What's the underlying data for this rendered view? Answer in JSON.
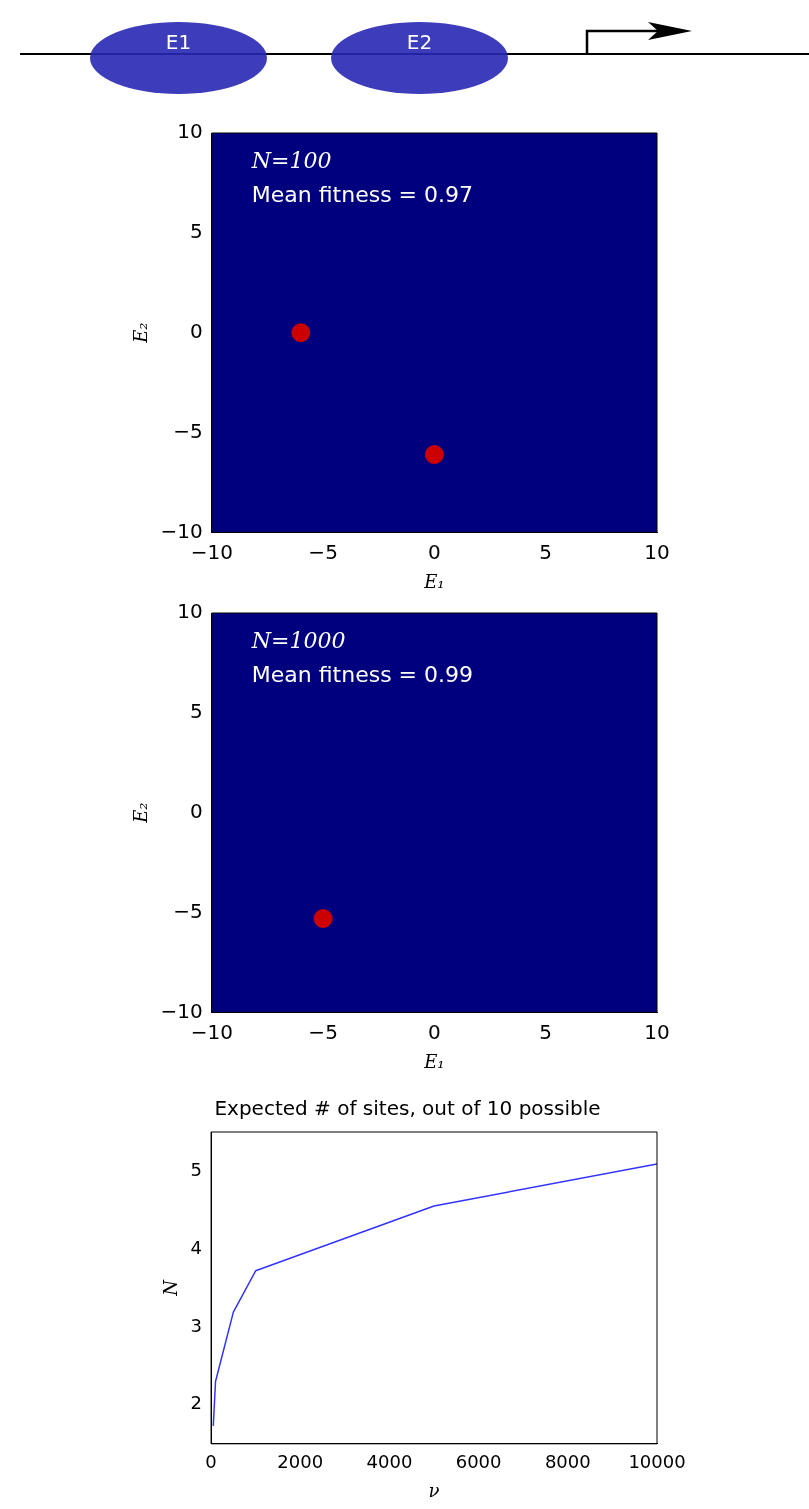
{
  "chart_data": [
    {
      "type": "other",
      "annotations": [
        "E1",
        "E2"
      ]
    },
    {
      "type": "scatter",
      "annotations": [
        "N=100",
        "Mean fitness = 0.97"
      ],
      "xlabel": "E₁",
      "ylabel": "E₂",
      "x": [
        -6,
        0
      ],
      "values": [
        0,
        -6.1
      ],
      "color": "#cc0000",
      "marker": "circle",
      "xlim": [
        -10,
        10
      ],
      "ylim": [
        -10,
        10
      ],
      "xticks": [
        -10,
        -5,
        0,
        5,
        10
      ],
      "yticks": [
        -10,
        -5,
        0,
        5,
        10
      ],
      "grid": false,
      "legend": false
    },
    {
      "type": "scatter",
      "annotations": [
        "N=1000",
        "Mean fitness = 0.99"
      ],
      "xlabel": "E₁",
      "ylabel": "E₂",
      "x": [
        -5
      ],
      "values": [
        -5.3
      ],
      "color": "#cc0000",
      "marker": "circle",
      "xlim": [
        -10,
        10
      ],
      "ylim": [
        -10,
        10
      ],
      "xticks": [
        -10,
        -5,
        0,
        5,
        10
      ],
      "yticks": [
        -10,
        -5,
        0,
        5,
        10
      ],
      "grid": false,
      "legend": false
    },
    {
      "type": "line",
      "title": "Expected # of sites, out of 10 possible",
      "xlabel": "ν",
      "ylabel": "N",
      "x": [
        50,
        100,
        500,
        1000,
        5000,
        10000
      ],
      "values": [
        1.73,
        2.3,
        3.19,
        3.72,
        4.55,
        5.09
      ],
      "color": "#3333ff",
      "marker": "none",
      "xlim": [
        0,
        10000
      ],
      "ylim": [
        1.5,
        5.5
      ],
      "xticks": [
        0,
        2000,
        4000,
        6000,
        8000,
        10000
      ],
      "yticks": [
        2,
        3,
        4,
        5
      ],
      "grid": false,
      "legend": false
    }
  ]
}
